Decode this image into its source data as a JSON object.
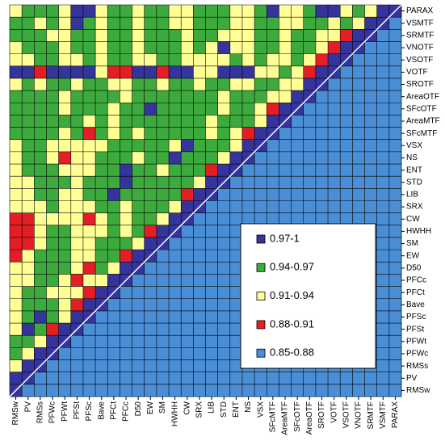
{
  "chart_data": {
    "type": "heatmap",
    "x_categories": [
      "RMSw",
      "PV",
      "RMSs",
      "PFWc",
      "PFWt",
      "PFSt",
      "PFSc",
      "Bave",
      "PFCt",
      "PFCc",
      "D50",
      "EW",
      "SM",
      "HWHH",
      "CW",
      "SRX",
      "LIB",
      "STD",
      "ENT",
      "NS",
      "VSX",
      "SFcMTF",
      "AreaMTF",
      "SFcOTF",
      "AreaOTF",
      "SROTF",
      "VOTF",
      "VSOTF",
      "VNOTF",
      "SRMTF",
      "VSMTF",
      "PARAX"
    ],
    "y_categories": [
      "PARAX",
      "VSMTF",
      "SRMTF",
      "VNOTF",
      "VSOTF",
      "VOTF",
      "SROTF",
      "AreaOTF",
      "SFcOTF",
      "AreaMTF",
      "SFcMTF",
      "VSX",
      "NS",
      "ENT",
      "STD",
      "LIB",
      "SRX",
      "CW",
      "HWHH",
      "SM",
      "EW",
      "D50",
      "PFCc",
      "PFCt",
      "Bave",
      "PFSc",
      "PFSt",
      "PFWt",
      "PFWc",
      "RMSs",
      "PV",
      "RMSw"
    ],
    "levels": [
      {
        "label": "0.97-1",
        "min": 0.97,
        "max": 1,
        "color": "#34349c"
      },
      {
        "label": "0.94-0.97",
        "min": 0.94,
        "max": 0.97,
        "color": "#3caa3c"
      },
      {
        "label": "0.91-0.94",
        "min": 0.91,
        "max": 0.94,
        "color": "#ffff96"
      },
      {
        "label": "0.88-0.91",
        "min": 0.88,
        "max": 0.91,
        "color": "#e41e26"
      },
      {
        "label": "0.85-0.88",
        "min": 0.85,
        "max": 0.88,
        "color": "#4a8ed6"
      }
    ],
    "z": [
      [
        0.92,
        0.95,
        0.95,
        0.95,
        0.92,
        0.98,
        0.98,
        0.92,
        0.95,
        0.95,
        0.92,
        0.95,
        0.95,
        0.92,
        0.92,
        0.95,
        0.95,
        0.95,
        0.92,
        0.92,
        0.95,
        0.98,
        0.92,
        0.92,
        0.95,
        0.98,
        0.98,
        0.92,
        0.95,
        0.92,
        0.98,
        1
      ],
      [
        0.95,
        0.95,
        0.92,
        0.95,
        0.92,
        0.98,
        0.95,
        0.92,
        0.95,
        0.95,
        0.92,
        0.95,
        0.95,
        0.92,
        0.92,
        0.95,
        0.95,
        0.95,
        0.92,
        0.92,
        0.95,
        0.95,
        0.92,
        0.92,
        0.95,
        0.95,
        0.92,
        0.95,
        0.92,
        0.98,
        1,
        0.86
      ],
      [
        0.95,
        0.95,
        0.95,
        0.92,
        0.92,
        0.95,
        0.95,
        0.92,
        0.95,
        0.95,
        0.92,
        0.95,
        0.95,
        0.95,
        0.92,
        0.95,
        0.95,
        0.92,
        0.92,
        0.92,
        0.95,
        0.95,
        0.92,
        0.95,
        0.95,
        0.92,
        0.92,
        0.89,
        0.98,
        1,
        0.86,
        0.86
      ],
      [
        0.92,
        0.95,
        0.95,
        0.95,
        0.92,
        0.95,
        0.95,
        0.92,
        0.95,
        0.95,
        0.92,
        0.95,
        0.95,
        0.95,
        0.92,
        0.95,
        0.92,
        0.98,
        0.92,
        0.92,
        0.95,
        0.95,
        0.92,
        0.95,
        0.95,
        0.92,
        0.89,
        0.98,
        1,
        0.86,
        0.86,
        0.86
      ],
      [
        0.92,
        0.92,
        0.95,
        0.95,
        0.92,
        0.92,
        0.95,
        0.92,
        0.95,
        0.95,
        0.92,
        0.92,
        0.95,
        0.95,
        0.92,
        0.92,
        0.92,
        0.92,
        0.95,
        0.92,
        0.95,
        0.92,
        0.92,
        0.95,
        0.92,
        0.89,
        0.98,
        1,
        0.86,
        0.86,
        0.86,
        0.86
      ],
      [
        0.98,
        0.98,
        0.89,
        0.98,
        0.98,
        0.98,
        0.98,
        0.92,
        0.89,
        0.89,
        0.98,
        0.98,
        0.89,
        0.98,
        0.98,
        0.92,
        0.92,
        0.98,
        0.98,
        0.98,
        0.92,
        0.92,
        0.95,
        0.92,
        0.89,
        0.98,
        1,
        0.86,
        0.86,
        0.86,
        0.86,
        0.86
      ],
      [
        0.92,
        0.95,
        0.92,
        0.95,
        0.95,
        0.92,
        0.95,
        0.95,
        0.92,
        0.92,
        0.95,
        0.95,
        0.92,
        0.95,
        0.95,
        0.92,
        0.95,
        0.95,
        0.92,
        0.92,
        0.95,
        0.95,
        0.92,
        0.92,
        0.98,
        1,
        0.86,
        0.86,
        0.86,
        0.86,
        0.86,
        0.86
      ],
      [
        0.95,
        0.95,
        0.95,
        0.95,
        0.92,
        0.95,
        0.95,
        0.95,
        0.95,
        0.92,
        0.95,
        0.95,
        0.95,
        0.95,
        0.95,
        0.95,
        0.95,
        0.92,
        0.95,
        0.95,
        0.95,
        0.92,
        0.92,
        0.98,
        1,
        0.86,
        0.86,
        0.86,
        0.86,
        0.86,
        0.86,
        0.86
      ],
      [
        0.95,
        0.95,
        0.95,
        0.95,
        0.92,
        0.95,
        0.95,
        0.95,
        0.92,
        0.95,
        0.95,
        0.98,
        0.95,
        0.95,
        0.95,
        0.95,
        0.95,
        0.92,
        0.95,
        0.95,
        0.92,
        0.89,
        0.98,
        1,
        0.86,
        0.86,
        0.86,
        0.86,
        0.86,
        0.86,
        0.86,
        0.86
      ],
      [
        0.95,
        0.95,
        0.95,
        0.95,
        0.95,
        0.95,
        0.92,
        0.95,
        0.92,
        0.95,
        0.95,
        0.95,
        0.95,
        0.95,
        0.95,
        0.95,
        0.92,
        0.95,
        0.95,
        0.95,
        0.92,
        0.98,
        1,
        0.86,
        0.86,
        0.86,
        0.86,
        0.86,
        0.86,
        0.86,
        0.86,
        0.86
      ],
      [
        0.95,
        0.95,
        0.95,
        0.95,
        0.92,
        0.95,
        0.89,
        0.95,
        0.92,
        0.95,
        0.92,
        0.95,
        0.95,
        0.95,
        0.95,
        0.95,
        0.92,
        0.95,
        0.92,
        0.89,
        0.98,
        1,
        0.86,
        0.86,
        0.86,
        0.86,
        0.86,
        0.86,
        0.86,
        0.86,
        0.86,
        0.86
      ],
      [
        0.92,
        0.95,
        0.95,
        0.92,
        0.92,
        0.92,
        0.92,
        0.92,
        0.95,
        0.95,
        0.95,
        0.95,
        0.95,
        0.92,
        0.98,
        0.95,
        0.95,
        0.95,
        0.92,
        0.98,
        1,
        0.86,
        0.86,
        0.86,
        0.86,
        0.86,
        0.86,
        0.86,
        0.86,
        0.86,
        0.86,
        0.86
      ],
      [
        0.92,
        0.95,
        0.95,
        0.92,
        0.89,
        0.92,
        0.92,
        0.95,
        0.95,
        0.95,
        0.92,
        0.95,
        0.95,
        0.98,
        0.95,
        0.95,
        0.95,
        0.92,
        0.98,
        1,
        0.86,
        0.86,
        0.86,
        0.86,
        0.86,
        0.86,
        0.86,
        0.86,
        0.86,
        0.86,
        0.86,
        0.86
      ],
      [
        0.92,
        0.95,
        0.95,
        0.95,
        0.92,
        0.92,
        0.92,
        0.95,
        0.95,
        0.98,
        0.95,
        0.95,
        0.92,
        0.95,
        0.95,
        0.95,
        0.89,
        0.98,
        1,
        0.86,
        0.86,
        0.86,
        0.86,
        0.86,
        0.86,
        0.86,
        0.86,
        0.86,
        0.86,
        0.86,
        0.86,
        0.86
      ],
      [
        0.92,
        0.92,
        0.95,
        0.95,
        0.95,
        0.92,
        0.95,
        0.95,
        0.95,
        0.98,
        0.95,
        0.95,
        0.95,
        0.95,
        0.95,
        0.92,
        0.98,
        1,
        0.86,
        0.86,
        0.86,
        0.86,
        0.86,
        0.86,
        0.86,
        0.86,
        0.86,
        0.86,
        0.86,
        0.86,
        0.86,
        0.86
      ],
      [
        0.92,
        0.92,
        0.95,
        0.95,
        0.92,
        0.92,
        0.95,
        0.95,
        0.98,
        0.95,
        0.95,
        0.95,
        0.95,
        0.95,
        0.89,
        0.98,
        1,
        0.86,
        0.86,
        0.86,
        0.86,
        0.86,
        0.86,
        0.86,
        0.86,
        0.86,
        0.86,
        0.86,
        0.86,
        0.86,
        0.86,
        0.86
      ],
      [
        0.92,
        0.92,
        0.92,
        0.95,
        0.92,
        0.92,
        0.92,
        0.95,
        0.95,
        0.92,
        0.95,
        0.95,
        0.95,
        0.92,
        0.98,
        1,
        0.86,
        0.86,
        0.86,
        0.86,
        0.86,
        0.86,
        0.86,
        0.86,
        0.86,
        0.86,
        0.86,
        0.86,
        0.86,
        0.86,
        0.86,
        0.86
      ],
      [
        0.89,
        0.89,
        0.92,
        0.92,
        0.92,
        0.92,
        0.89,
        0.92,
        0.95,
        0.92,
        0.95,
        0.95,
        0.92,
        0.98,
        1,
        0.86,
        0.86,
        0.86,
        0.86,
        0.86,
        0.86,
        0.86,
        0.86,
        0.86,
        0.86,
        0.86,
        0.86,
        0.86,
        0.86,
        0.86,
        0.86,
        0.86
      ],
      [
        0.89,
        0.89,
        0.92,
        0.95,
        0.95,
        0.92,
        0.92,
        0.92,
        0.95,
        0.92,
        0.95,
        0.89,
        0.98,
        1,
        0.86,
        0.86,
        0.86,
        0.86,
        0.86,
        0.86,
        0.86,
        0.86,
        0.86,
        0.86,
        0.86,
        0.86,
        0.86,
        0.86,
        0.86,
        0.86,
        0.86,
        0.86
      ],
      [
        0.89,
        0.89,
        0.92,
        0.95,
        0.95,
        0.92,
        0.92,
        0.95,
        0.95,
        0.95,
        0.92,
        0.98,
        1,
        0.86,
        0.86,
        0.86,
        0.86,
        0.86,
        0.86,
        0.86,
        0.86,
        0.86,
        0.86,
        0.86,
        0.86,
        0.86,
        0.86,
        0.86,
        0.86,
        0.86,
        0.86,
        0.86
      ],
      [
        0.89,
        0.92,
        0.95,
        0.95,
        0.95,
        0.92,
        0.92,
        0.95,
        0.95,
        0.89,
        0.98,
        1,
        0.86,
        0.86,
        0.86,
        0.86,
        0.86,
        0.86,
        0.86,
        0.86,
        0.86,
        0.86,
        0.86,
        0.86,
        0.86,
        0.86,
        0.86,
        0.86,
        0.86,
        0.86,
        0.86,
        0.86
      ],
      [
        0.92,
        0.92,
        0.95,
        0.95,
        0.95,
        0.92,
        0.89,
        0.95,
        0.92,
        0.98,
        1,
        0.86,
        0.86,
        0.86,
        0.86,
        0.86,
        0.86,
        0.86,
        0.86,
        0.86,
        0.86,
        0.86,
        0.86,
        0.86,
        0.86,
        0.86,
        0.86,
        0.86,
        0.86,
        0.86,
        0.86,
        0.86
      ],
      [
        0.92,
        0.92,
        0.95,
        0.95,
        0.92,
        0.89,
        0.92,
        0.92,
        0.98,
        1,
        0.86,
        0.86,
        0.86,
        0.86,
        0.86,
        0.86,
        0.86,
        0.86,
        0.86,
        0.86,
        0.86,
        0.86,
        0.86,
        0.86,
        0.86,
        0.86,
        0.86,
        0.86,
        0.86,
        0.86,
        0.86,
        0.86
      ],
      [
        0.92,
        0.95,
        0.95,
        0.92,
        0.92,
        0.92,
        0.89,
        0.98,
        1,
        0.86,
        0.86,
        0.86,
        0.86,
        0.86,
        0.86,
        0.86,
        0.86,
        0.86,
        0.86,
        0.86,
        0.86,
        0.86,
        0.86,
        0.86,
        0.86,
        0.86,
        0.86,
        0.86,
        0.86,
        0.86,
        0.86,
        0.86
      ],
      [
        0.92,
        0.95,
        0.95,
        0.95,
        0.92,
        0.89,
        0.98,
        1,
        0.86,
        0.86,
        0.86,
        0.86,
        0.86,
        0.86,
        0.86,
        0.86,
        0.86,
        0.86,
        0.86,
        0.86,
        0.86,
        0.86,
        0.86,
        0.86,
        0.86,
        0.86,
        0.86,
        0.86,
        0.86,
        0.86,
        0.86,
        0.86
      ],
      [
        0.92,
        0.95,
        0.98,
        0.95,
        0.92,
        0.98,
        1,
        0.86,
        0.86,
        0.86,
        0.86,
        0.86,
        0.86,
        0.86,
        0.86,
        0.86,
        0.86,
        0.86,
        0.86,
        0.86,
        0.86,
        0.86,
        0.86,
        0.86,
        0.86,
        0.86,
        0.86,
        0.86,
        0.86,
        0.86,
        0.86,
        0.86
      ],
      [
        0.92,
        0.98,
        0.95,
        0.89,
        0.98,
        1,
        0.86,
        0.86,
        0.86,
        0.86,
        0.86,
        0.86,
        0.86,
        0.86,
        0.86,
        0.86,
        0.86,
        0.86,
        0.86,
        0.86,
        0.86,
        0.86,
        0.86,
        0.86,
        0.86,
        0.86,
        0.86,
        0.86,
        0.86,
        0.86,
        0.86,
        0.86
      ],
      [
        0.95,
        0.95,
        0.92,
        0.98,
        1,
        0.86,
        0.86,
        0.86,
        0.86,
        0.86,
        0.86,
        0.86,
        0.86,
        0.86,
        0.86,
        0.86,
        0.86,
        0.86,
        0.86,
        0.86,
        0.86,
        0.86,
        0.86,
        0.86,
        0.86,
        0.86,
        0.86,
        0.86,
        0.86,
        0.86,
        0.86,
        0.86
      ],
      [
        0.95,
        0.92,
        0.98,
        1,
        0.86,
        0.86,
        0.86,
        0.86,
        0.86,
        0.86,
        0.86,
        0.86,
        0.86,
        0.86,
        0.86,
        0.86,
        0.86,
        0.86,
        0.86,
        0.86,
        0.86,
        0.86,
        0.86,
        0.86,
        0.86,
        0.86,
        0.86,
        0.86,
        0.86,
        0.86,
        0.86,
        0.86
      ],
      [
        0.92,
        0.98,
        1,
        0.86,
        0.86,
        0.86,
        0.86,
        0.86,
        0.86,
        0.86,
        0.86,
        0.86,
        0.86,
        0.86,
        0.86,
        0.86,
        0.86,
        0.86,
        0.86,
        0.86,
        0.86,
        0.86,
        0.86,
        0.86,
        0.86,
        0.86,
        0.86,
        0.86,
        0.86,
        0.86,
        0.86,
        0.86
      ],
      [
        0.98,
        1,
        0.86,
        0.86,
        0.86,
        0.86,
        0.86,
        0.86,
        0.86,
        0.86,
        0.86,
        0.86,
        0.86,
        0.86,
        0.86,
        0.86,
        0.86,
        0.86,
        0.86,
        0.86,
        0.86,
        0.86,
        0.86,
        0.86,
        0.86,
        0.86,
        0.86,
        0.86,
        0.86,
        0.86,
        0.86,
        0.86
      ],
      [
        1,
        0.86,
        0.86,
        0.86,
        0.86,
        0.86,
        0.86,
        0.86,
        0.86,
        0.86,
        0.86,
        0.86,
        0.86,
        0.86,
        0.86,
        0.86,
        0.86,
        0.86,
        0.86,
        0.86,
        0.86,
        0.86,
        0.86,
        0.86,
        0.86,
        0.86,
        0.86,
        0.86,
        0.86,
        0.86,
        0.86,
        0.86
      ]
    ]
  }
}
